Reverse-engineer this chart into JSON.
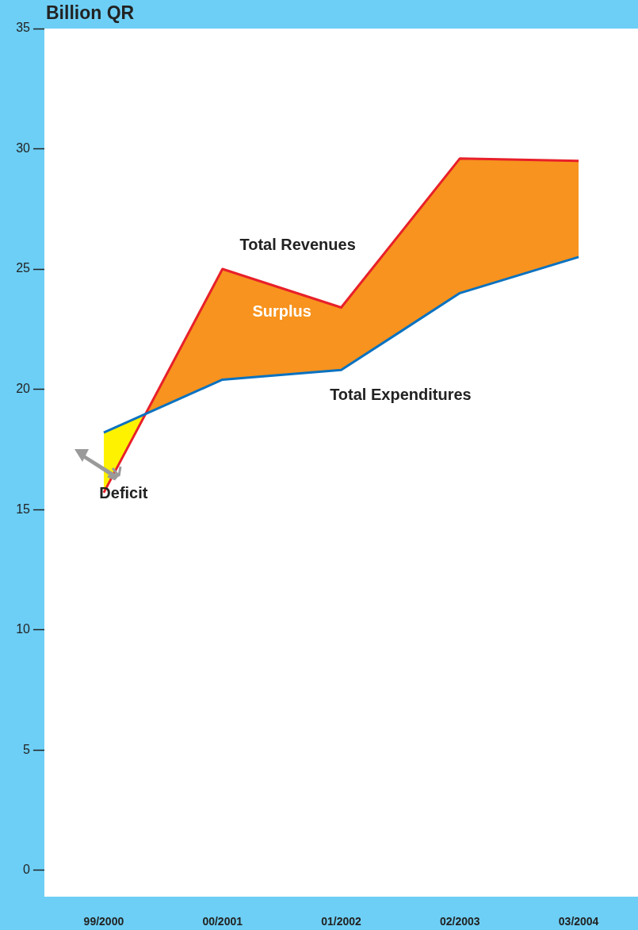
{
  "chart_data": {
    "type": "line",
    "title": "Billion QR",
    "categories": [
      "99/2000",
      "00/2001",
      "01/2002",
      "02/2003",
      "03/2004"
    ],
    "series": [
      {
        "name": "Total Revenues",
        "color": "#e8202a",
        "values": [
          15.7,
          25.0,
          23.4,
          29.6,
          29.5
        ]
      },
      {
        "name": "Total Expenditures",
        "color": "#0a72c0",
        "values": [
          18.2,
          20.4,
          20.8,
          24.0,
          25.5
        ]
      }
    ],
    "ylim": [
      -1.1,
      35
    ],
    "yticks": [
      0,
      5,
      10,
      15,
      20,
      25,
      30,
      35
    ],
    "grid": false,
    "legend": false,
    "marker": "none",
    "line_style": "solid",
    "annotations": [
      "Surplus",
      "Deficit"
    ]
  }
}
